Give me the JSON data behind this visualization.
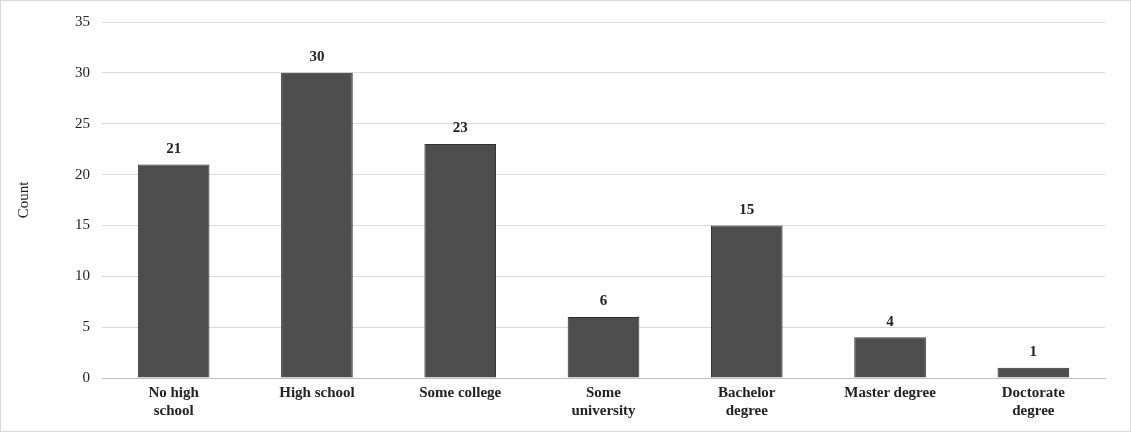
{
  "chart_data": {
    "type": "bar",
    "ylabel": "Count",
    "categories": [
      "No high school",
      "High school",
      "Some college",
      "Some university",
      "Bachelor degree",
      "Master degree",
      "Doctorate degree"
    ],
    "values": [
      21,
      30,
      23,
      6,
      15,
      4,
      1
    ],
    "color": "#4d4d4d",
    "ylim": [
      0,
      35
    ],
    "yticks": [
      0,
      5,
      10,
      15,
      20,
      25,
      30,
      35
    ],
    "grid": "y",
    "data_labels": true,
    "legend": false
  }
}
